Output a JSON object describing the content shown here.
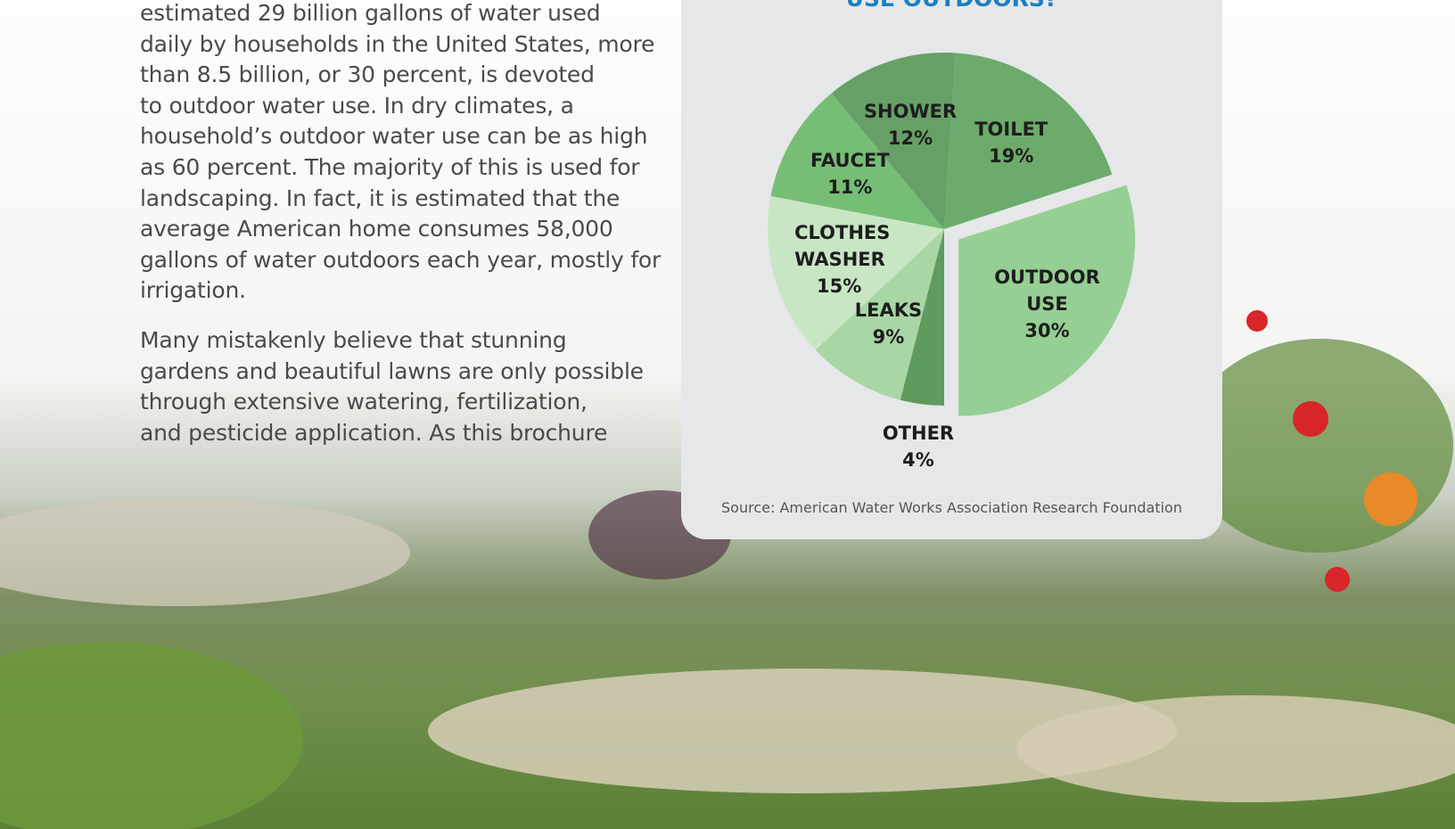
{
  "text": {
    "paragraphs": [
      [
        "estimated 29 billion gallons of water used",
        "daily by households in the United States, more",
        "than 8.5 billion, or 30 percent, is devoted",
        "to outdoor water use. In dry climates, a",
        "household’s outdoor water use can be as high",
        "as 60 percent. The majority of this is used for",
        "landscaping. In fact, it is estimated that the",
        "average American home consumes 58,000",
        "gallons of water outdoors each year, mostly for",
        "irrigation."
      ],
      [
        "Many mistakenly believe that stunning",
        "gardens and beautiful lawns are only possible",
        "through extensive watering, fertilization,",
        "and pesticide application. As this brochure"
      ]
    ]
  },
  "chart_data": {
    "type": "pie",
    "title": "USE OUTDOORS?",
    "source": "Source: American Water Works Association Research Foundation",
    "categories": [
      "TOILET",
      "OUTDOOR USE",
      "OTHER",
      "LEAKS",
      "CLOTHES WASHER",
      "FAUCET",
      "SHOWER"
    ],
    "values": [
      19,
      30,
      4,
      9,
      15,
      11,
      12
    ],
    "value_labels": [
      "19%",
      "30%",
      "4%",
      "9%",
      "15%",
      "11%",
      "12%"
    ],
    "colors": [
      "#6cab6c",
      "#95cf93",
      "#5f9a5f",
      "#a9d6a5",
      "#c8e6c4",
      "#76be76",
      "#67a067"
    ],
    "exploded": "OUTDOOR USE"
  }
}
